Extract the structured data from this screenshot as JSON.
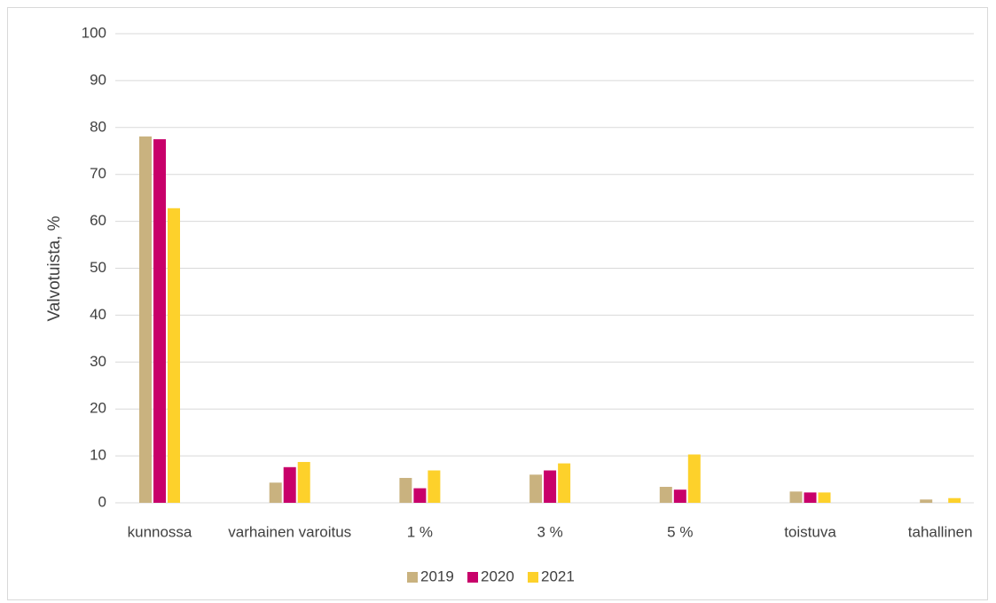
{
  "chart_data": {
    "type": "bar",
    "ylabel": "Valvotuista, %",
    "categories": [
      "kunnossa",
      "varhainen varoitus",
      "1 %",
      "3 %",
      "5 %",
      "toistuva",
      "tahallinen"
    ],
    "series": [
      {
        "name": "2019",
        "color": "#c9b27f",
        "values": [
          78.1,
          4.3,
          5.3,
          6.0,
          3.4,
          2.4,
          0.7
        ]
      },
      {
        "name": "2020",
        "color": "#c8006a",
        "values": [
          77.5,
          7.6,
          3.1,
          6.9,
          2.8,
          2.2,
          0
        ]
      },
      {
        "name": "2021",
        "color": "#fdd12b",
        "values": [
          62.8,
          8.7,
          6.9,
          8.4,
          10.3,
          2.2,
          1.0
        ]
      }
    ],
    "ylim": [
      0,
      100
    ],
    "yticks": [
      0,
      10,
      20,
      30,
      40,
      50,
      60,
      70,
      80,
      90,
      100
    ],
    "grid": true,
    "legend": "bottom"
  }
}
